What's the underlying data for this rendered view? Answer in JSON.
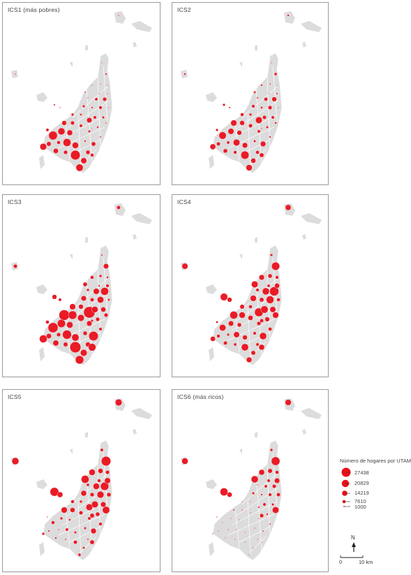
{
  "panels": [
    {
      "id": "ics1",
      "label": "ICS1 (más pobres)",
      "scale": [
        1.0,
        0.55,
        0.45,
        0.2
      ]
    },
    {
      "id": "ics2",
      "label": "ICS2",
      "scale": [
        0.85,
        0.7,
        0.55,
        0.3
      ]
    },
    {
      "id": "ics3",
      "label": "ICS3",
      "scale": [
        1.15,
        1.2,
        0.9,
        0.55
      ]
    },
    {
      "id": "ics4",
      "label": "ICS4",
      "scale": [
        0.75,
        0.9,
        1.05,
        0.85
      ]
    },
    {
      "id": "ics5",
      "label": "ICS5",
      "scale": [
        0.4,
        0.7,
        0.95,
        1.0
      ]
    },
    {
      "id": "ics6",
      "label": "ICS6 (más ricos)",
      "scale": [
        0.12,
        0.2,
        0.45,
        0.9
      ]
    }
  ],
  "legend": {
    "title": "Número de hogares por UTAM",
    "values": [
      "27438",
      "20829",
      "14219",
      "7610",
      "1000"
    ]
  },
  "north": {
    "label": "N"
  },
  "scale_bar": {
    "start": "0",
    "end": "10 km"
  },
  "colors": {
    "bubble": "#e8101b",
    "land": "#dcdcdc",
    "land_stroke": "#ffffff",
    "border": "#9a9a9a"
  }
}
